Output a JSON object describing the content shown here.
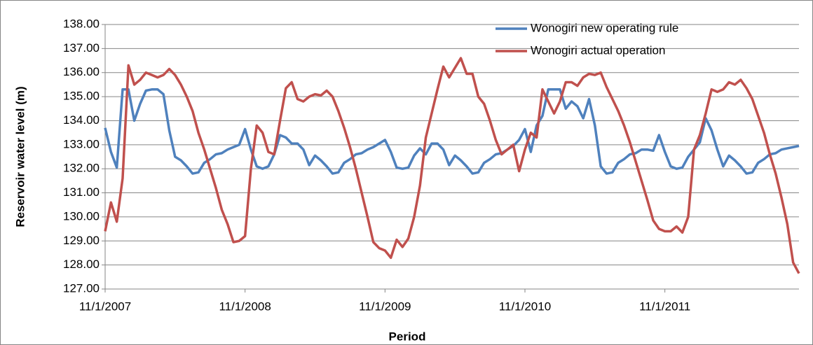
{
  "chart_data": {
    "type": "line",
    "y_label": "Reservoir water level (m)",
    "x_label": "Period",
    "categories": [
      "11/1/2007",
      null,
      null,
      null,
      null,
      null,
      null,
      null,
      null,
      null,
      null,
      null,
      null,
      null,
      null,
      null,
      null,
      null,
      null,
      null,
      null,
      null,
      null,
      null,
      "11/1/2008",
      null,
      null,
      null,
      null,
      null,
      null,
      null,
      null,
      null,
      null,
      null,
      null,
      null,
      null,
      null,
      null,
      null,
      null,
      null,
      null,
      null,
      null,
      null,
      "11/1/2009",
      null,
      null,
      null,
      null,
      null,
      null,
      null,
      null,
      null,
      null,
      null,
      null,
      null,
      null,
      null,
      null,
      null,
      null,
      null,
      null,
      null,
      null,
      null,
      "11/1/2010",
      null,
      null,
      null,
      null,
      null,
      null,
      null,
      null,
      null,
      null,
      null,
      null,
      null,
      null,
      null,
      null,
      null,
      null,
      null,
      null,
      null,
      null,
      null,
      "11/1/2011",
      null,
      null,
      null,
      null,
      null,
      null,
      null,
      null,
      null,
      null,
      null,
      null,
      null,
      null,
      null,
      null,
      null,
      null,
      null,
      null,
      null,
      null,
      null
    ],
    "series": [
      {
        "name": "Wonogiri new operating rule",
        "color": "#4f81bd",
        "values": [
          133.7,
          132.7,
          132.05,
          135.3,
          135.3,
          134.0,
          134.7,
          135.25,
          135.3,
          135.3,
          135.1,
          133.6,
          132.5,
          132.35,
          132.1,
          131.8,
          131.85,
          132.25,
          132.4,
          132.6,
          132.65,
          132.8,
          132.9,
          133.0,
          133.65,
          132.8,
          132.1,
          132.0,
          132.1,
          132.6,
          133.4,
          133.3,
          133.05,
          133.05,
          132.8,
          132.15,
          132.55,
          132.35,
          132.1,
          131.8,
          131.85,
          132.25,
          132.4,
          132.6,
          132.65,
          132.8,
          132.9,
          133.05,
          133.2,
          132.7,
          132.05,
          132.0,
          132.05,
          132.55,
          132.85,
          132.6,
          133.05,
          133.05,
          132.8,
          132.15,
          132.55,
          132.35,
          132.1,
          131.8,
          131.85,
          132.25,
          132.4,
          132.6,
          132.65,
          132.8,
          132.95,
          133.2,
          133.65,
          132.7,
          133.8,
          134.2,
          135.3,
          135.3,
          135.3,
          134.5,
          134.8,
          134.6,
          134.1,
          134.9,
          133.8,
          132.1,
          131.8,
          131.85,
          132.25,
          132.4,
          132.6,
          132.65,
          132.8,
          132.8,
          132.75,
          133.4,
          132.7,
          132.1,
          132.0,
          132.05,
          132.5,
          132.8,
          133.1,
          134.1,
          133.6,
          132.8,
          132.1,
          132.55,
          132.35,
          132.1,
          131.8,
          131.85,
          132.25,
          132.4,
          132.6,
          132.65,
          132.8,
          132.85,
          132.9,
          132.95
        ]
      },
      {
        "name": "Wonogiri actual operation",
        "color": "#c0504d",
        "values": [
          129.4,
          130.6,
          129.8,
          131.6,
          136.3,
          135.5,
          135.7,
          136.0,
          135.9,
          135.8,
          135.9,
          136.15,
          135.9,
          135.5,
          135.0,
          134.4,
          133.5,
          132.8,
          132.0,
          131.2,
          130.3,
          129.7,
          128.95,
          129.0,
          129.2,
          132.0,
          133.8,
          133.5,
          132.7,
          132.6,
          134.0,
          135.35,
          135.6,
          134.9,
          134.8,
          135.0,
          135.1,
          135.05,
          135.25,
          135.0,
          134.4,
          133.7,
          132.9,
          132.0,
          131.0,
          130.0,
          128.95,
          128.7,
          128.6,
          128.3,
          129.05,
          128.75,
          129.1,
          130.0,
          131.3,
          133.3,
          134.3,
          135.3,
          136.25,
          135.8,
          136.2,
          136.6,
          135.95,
          135.95,
          135.0,
          134.7,
          134.0,
          133.2,
          132.6,
          132.8,
          133.0,
          131.9,
          132.8,
          133.5,
          133.3,
          135.3,
          134.8,
          134.3,
          134.8,
          135.6,
          135.6,
          135.45,
          135.8,
          135.95,
          135.9,
          136.0,
          135.4,
          134.9,
          134.4,
          133.8,
          133.1,
          132.3,
          131.5,
          130.7,
          129.85,
          129.5,
          129.4,
          129.4,
          129.6,
          129.35,
          130.0,
          132.8,
          133.4,
          134.3,
          135.3,
          135.2,
          135.3,
          135.6,
          135.5,
          135.7,
          135.35,
          134.9,
          134.2,
          133.5,
          132.6,
          131.8,
          130.8,
          129.7,
          128.1,
          127.65
        ]
      }
    ],
    "ylim": [
      127,
      138
    ],
    "yticks": [
      {
        "value": 127,
        "label": "127.00"
      },
      {
        "value": 128,
        "label": "128.00"
      },
      {
        "value": 129,
        "label": "129.00"
      },
      {
        "value": 130,
        "label": "130.00"
      },
      {
        "value": 131,
        "label": "131.00"
      },
      {
        "value": 132,
        "label": "132.00"
      },
      {
        "value": 133,
        "label": "133.00"
      },
      {
        "value": 134,
        "label": "134.00"
      },
      {
        "value": 135,
        "label": "135.00"
      },
      {
        "value": 136,
        "label": "136.00"
      },
      {
        "value": 137,
        "label": "137.00"
      },
      {
        "value": 138,
        "label": "138.00"
      }
    ],
    "grid": true,
    "legend": "top-right"
  }
}
